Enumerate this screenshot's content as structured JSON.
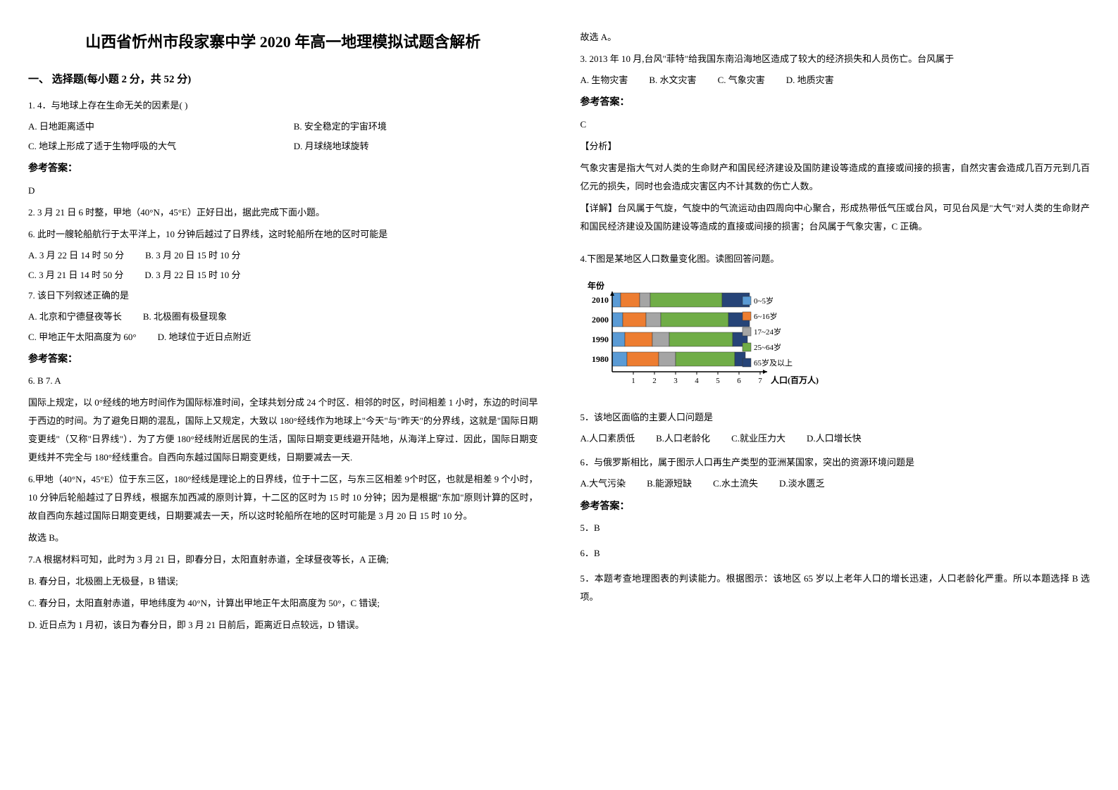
{
  "title": "山西省忻州市段家寨中学 2020 年高一地理模拟试题含解析",
  "section1": {
    "heading": "一、 选择题(每小题 2 分，共 52 分)"
  },
  "q1": {
    "stem": "1. 4．与地球上存在生命无关的因素是(    )",
    "optA": "A. 日地距离适中",
    "optB": "B. 安全稳定的宇宙环境",
    "optC": "C. 地球上形成了适于生物呼吸的大气",
    "optD": "D. 月球绕地球旋转",
    "answerLabel": "参考答案：",
    "answer": "D"
  },
  "q2": {
    "stem": "2. 3 月 21 日 6 时整，甲地（40°N，45°E）正好日出，据此完成下面小题。",
    "sub6": "6. 此时一艘轮船航行于太平洋上，10 分钟后越过了日界线，这时轮船所在地的区时可能是",
    "sub6A": "A. 3 月 22 日 14 时 50 分",
    "sub6B": "B. 3 月 20 日 15 时 10 分",
    "sub6C": "C. 3 月 21 日 14 时 50 分",
    "sub6D": "D. 3 月 22 日 15 时 10 分",
    "sub7": "7. 该日下列叙述正确的是",
    "sub7A": "A. 北京和宁德昼夜等长",
    "sub7B": "B. 北极圈有极昼现象",
    "sub7C": "C. 甲地正午太阳高度为 60°",
    "sub7D": "D. 地球位于近日点附近",
    "answerLabel": "参考答案：",
    "answer": "6. B          7. A",
    "explain1": "国际上规定，以 0°经线的地方时间作为国际标准时间，全球共划分成 24 个时区．相邻的时区，时间相差 1 小时，东边的时间早于西边的时间。为了避免日期的混乱，国际上又规定，大致以 180°经线作为地球上\"今天\"与\"昨天\"的分界线，这就是\"国际日期变更线\"（又称\"日界线\"）．为了方便 180°经线附近居民的生活，国际日期变更线避开陆地，从海洋上穿过．因此，国际日期变更线并不完全与 180°经线重合。自西向东越过国际日期变更线，日期要减去一天.",
    "explain2": "6.甲地（40°N，45°E）位于东三区，180°经线是理论上的日界线，位于十二区，与东三区相差 9个时区，也就是相差 9 个小时，10 分钟后轮船越过了日界线，根据东加西减的原则计算，十二区的区时为 15 时 10 分钟；因为是根据\"东加\"原则计算的区时，故自西向东越过国际日期变更线，日期要减去一天，所以这时轮船所在地的区时可能是 3 月 20 日 15 时 10 分。",
    "explain3": "故选 B。",
    "explain4": "7.A 根据材料可知，此时为 3 月 21 日，即春分日，太阳直射赤道，全球昼夜等长，A 正确;",
    "explain5": "B. 春分日，北极圈上无极昼，B 错误;",
    "explain6": "C. 春分日，太阳直射赤道，甲地纬度为 40°N，计算出甲地正午太阳高度为 50°，C 错误;",
    "explain7": "D. 近日点为 1 月初，该日为春分日，即 3 月 21 日前后，距离近日点较远，D 错误。"
  },
  "col2": {
    "line1": "故选 A。"
  },
  "q3": {
    "stem": "3. 2013 年 10 月,台风\"菲特\"给我国东南沿海地区造成了较大的经济损失和人员伤亡。台风属于",
    "optA": "A. 生物灾害",
    "optB": "B. 水文灾害",
    "optC": "C. 气象灾害",
    "optD": "D. 地质灾害",
    "answerLabel": "参考答案：",
    "answer": "C",
    "analysisLabel": "【分析】",
    "analysis1": "气象灾害是指大气对人类的生命财产和国民经济建设及国防建设等造成的直接或间接的损害，自然灾害会造成几百万元到几百亿元的损失，同时也会造成灾害区内不计其数的伤亡人数。",
    "detailLabel": "【详解】台风属于气旋，气旋中的气流运动由四周向中心聚合，形成热带低气压或台风，可见台风是\"大气\"对人类的生命财产和国民经济建设及国防建设等造成的直接或间接的损害；台风属于气象灾害，C 正确。"
  },
  "q4": {
    "stem": "4.下图是某地区人口数量变化图。读图回答问题。",
    "chart": {
      "type": "bar",
      "yLabel": "年份",
      "xLabel": "人口(百万人)",
      "years": [
        "2010",
        "2000",
        "1990",
        "1980"
      ],
      "xTicks": [
        "1",
        "2",
        "3",
        "4",
        "5",
        "6",
        "7"
      ],
      "legend": [
        "0~5岁",
        "6~16岁",
        "17~24岁",
        "25~64岁",
        "65岁及以上"
      ],
      "legendColors": [
        "#5B9BD5",
        "#ED7D31",
        "#A5A5A5",
        "#70AD47",
        "#264478"
      ],
      "yearPositions": [
        0,
        30,
        60,
        90
      ],
      "barHeight": 20,
      "segments": {
        "2010": [
          {
            "color": "#5B9BD5",
            "width": 0.4
          },
          {
            "color": "#ED7D31",
            "width": 0.9
          },
          {
            "color": "#A5A5A5",
            "width": 0.5
          },
          {
            "color": "#70AD47",
            "width": 3.4
          },
          {
            "color": "#264478",
            "width": 1.3
          }
        ],
        "2000": [
          {
            "color": "#5B9BD5",
            "width": 0.5
          },
          {
            "color": "#ED7D31",
            "width": 1.1
          },
          {
            "color": "#A5A5A5",
            "width": 0.7
          },
          {
            "color": "#70AD47",
            "width": 3.2
          },
          {
            "color": "#264478",
            "width": 1.0
          }
        ],
        "1990": [
          {
            "color": "#5B9BD5",
            "width": 0.6
          },
          {
            "color": "#ED7D31",
            "width": 1.3
          },
          {
            "color": "#A5A5A5",
            "width": 0.8
          },
          {
            "color": "#70AD47",
            "width": 3.0
          },
          {
            "color": "#264478",
            "width": 0.7
          }
        ],
        "1980": [
          {
            "color": "#5B9BD5",
            "width": 0.7
          },
          {
            "color": "#ED7D31",
            "width": 1.5
          },
          {
            "color": "#A5A5A5",
            "width": 0.8
          },
          {
            "color": "#70AD47",
            "width": 2.8
          },
          {
            "color": "#264478",
            "width": 0.5
          }
        ]
      },
      "xScale": 30
    },
    "sub5": "5．该地区面临的主要人口问题是",
    "sub5A": "A.人口素质低",
    "sub5B": "B.人口老龄化",
    "sub5C": "C.就业压力大",
    "sub5D": "D.人口增长快",
    "sub6": "6．与俄罗斯相比，属于图示人口再生产类型的亚洲某国家，突出的资源环境问题是",
    "sub6A": "A.大气污染",
    "sub6B": "B.能源短缺",
    "sub6C": "C.水土流失",
    "sub6D": "D.淡水匮乏",
    "answerLabel": "参考答案：",
    "ans5": "5．B",
    "ans6": "6．B",
    "explain": "5．本题考查地理图表的判读能力。根据图示：该地区 65 岁以上老年人口的增长迅速，人口老龄化严重。所以本题选择 B 选项。"
  }
}
